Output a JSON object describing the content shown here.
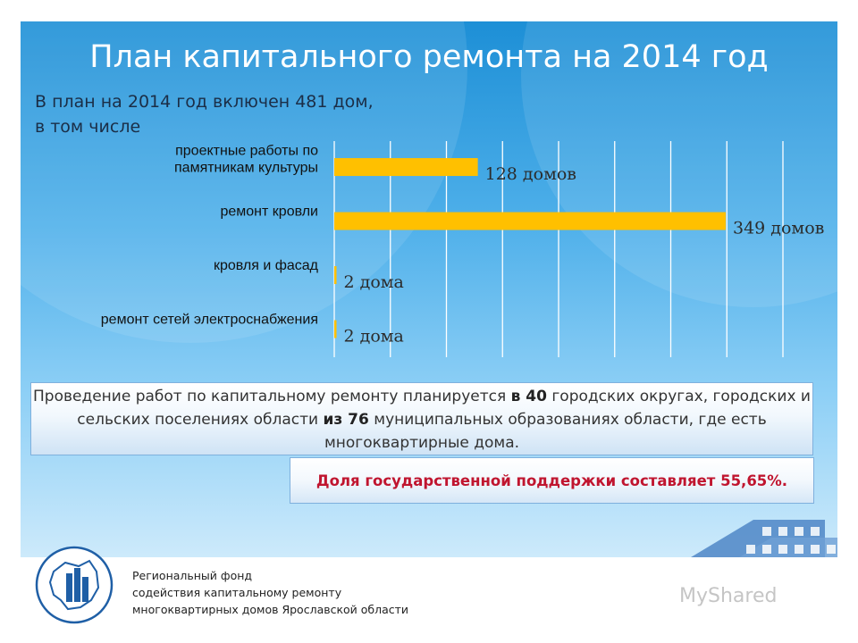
{
  "slide": {
    "title": "План капитального ремонта на 2014 год",
    "subtitle_line1": "В план на 2014 год включен 481 дом,",
    "subtitle_line2": "в том числе"
  },
  "chart_data": {
    "type": "bar",
    "orientation": "horizontal",
    "categories": [
      [
        "проектные работы по",
        "памятникам культуры"
      ],
      [
        "ремонт кровли"
      ],
      [
        "кровля и фасад"
      ],
      [
        "ремонт сетей электроснабжения"
      ]
    ],
    "values": [
      128,
      349,
      2,
      2
    ],
    "units": [
      "домов",
      "домов",
      "дома",
      "дома"
    ],
    "xlim": [
      0,
      400
    ],
    "grid": true,
    "bar_color": "#ffc000"
  },
  "info": {
    "part1": "Проведение работ по капитальному ремонту планируется ",
    "bold1": "в 40",
    "part2": " городских округах, городских и сельских поселениях области ",
    "bold2": "из 76",
    "part3": " муниципальных образованиях области, где есть многоквартирные дома."
  },
  "support": {
    "text": "Доля государственной поддержки составляет 55,65%."
  },
  "footer": {
    "line1": "Региональный фонд",
    "line2": "содействия капитальному ремонту",
    "line3": "многоквартирных домов Ярославской области"
  },
  "watermark": "MyShared"
}
